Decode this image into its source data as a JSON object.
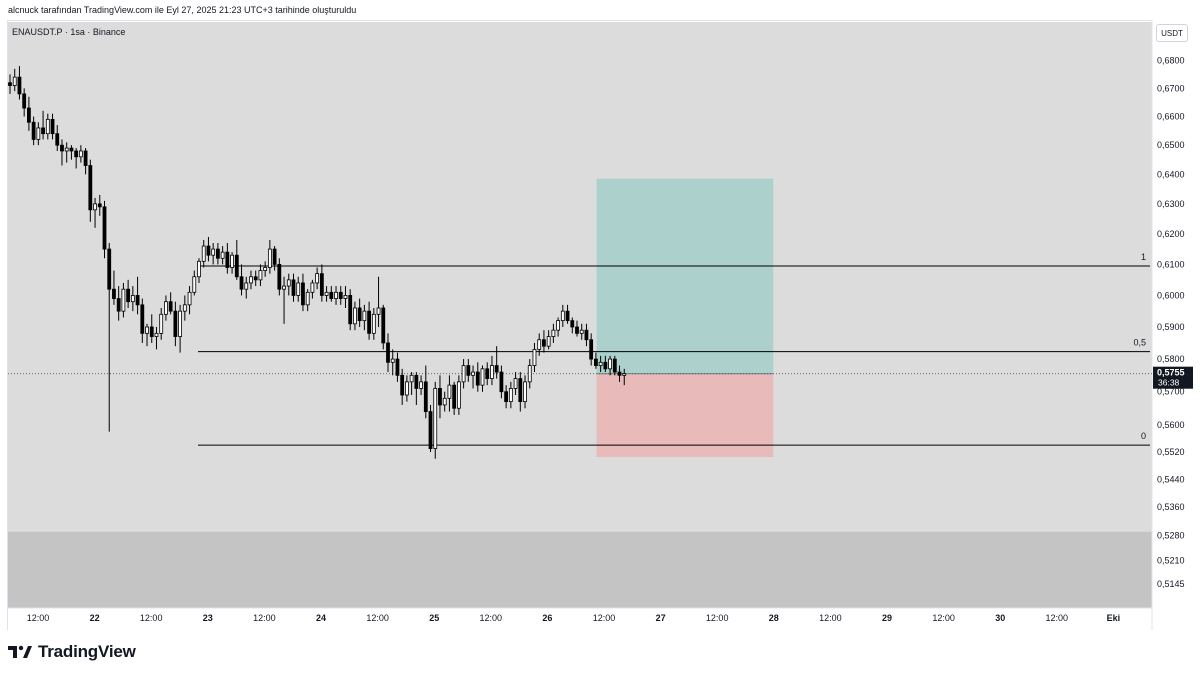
{
  "header": {
    "snapshot_note": "alcnuck tarafından TradingView.com ile Eyl 27, 2025 21:23 UTC+3 tarihinde oluşturuldu"
  },
  "symbol": {
    "line": "ENAUSDT.P · 1sa · Binance",
    "currency": "USDT"
  },
  "brand": {
    "name": "TradingView"
  },
  "colors": {
    "panel": "#dcdcdc",
    "shade": "#c4c4c4",
    "candle": "#000000",
    "hollow": "#ffffff",
    "target_zone": "#a9cfc9",
    "stop_zone": "#e8b7b7",
    "price_tag": "#131722"
  },
  "chart_data": {
    "type": "candlestick",
    "title": "ENAUSDT.P · 1sa · Binance",
    "timeframe": "1sa",
    "y_axis": {
      "scale": "log",
      "side": "right",
      "ticks": [
        "0,6800",
        "0,6700",
        "0,6600",
        "0,6500",
        "0,6400",
        "0,6300",
        "0,6200",
        "0,6100",
        "0,6000",
        "0,5900",
        "0,5800",
        "0,5700",
        "0,5600",
        "0,5520",
        "0,5440",
        "0,5360",
        "0,5280",
        "0,5210",
        "0,5145"
      ]
    },
    "x_axis": {
      "ticks": [
        "12:00",
        "22",
        "12:00",
        "23",
        "12:00",
        "24",
        "12:00",
        "25",
        "12:00",
        "26",
        "12:00",
        "27",
        "12:00",
        "28",
        "12:00",
        "29",
        "12:00",
        "30",
        "12:00",
        "Eki"
      ]
    },
    "grid": false,
    "current_price": {
      "value": "0,5755",
      "countdown": "36:38"
    },
    "fib_levels": [
      {
        "label": "1",
        "price": 0.6095
      },
      {
        "label": "0,5",
        "price": 0.5823
      },
      {
        "label": "0",
        "price": 0.554
      }
    ],
    "position_tool": {
      "side": "long",
      "entry": 0.5755,
      "target": 0.6385,
      "stop": 0.5505,
      "x_start": 125,
      "x_end": 161
    },
    "shaded_band": {
      "from": 0.529,
      "to": 0.51
    },
    "candles": [
      [
        0.672,
        0.675,
        0.668,
        0.671
      ],
      [
        0.671,
        0.677,
        0.669,
        0.674
      ],
      [
        0.674,
        0.678,
        0.666,
        0.668
      ],
      [
        0.668,
        0.67,
        0.66,
        0.663
      ],
      [
        0.663,
        0.667,
        0.655,
        0.658
      ],
      [
        0.658,
        0.66,
        0.65,
        0.652
      ],
      [
        0.652,
        0.658,
        0.65,
        0.656
      ],
      [
        0.656,
        0.662,
        0.652,
        0.654
      ],
      [
        0.654,
        0.661,
        0.652,
        0.659
      ],
      [
        0.659,
        0.661,
        0.652,
        0.654
      ],
      [
        0.654,
        0.657,
        0.648,
        0.65
      ],
      [
        0.65,
        0.652,
        0.643,
        0.648
      ],
      [
        0.648,
        0.651,
        0.644,
        0.649
      ],
      [
        0.649,
        0.65,
        0.645,
        0.648
      ],
      [
        0.648,
        0.649,
        0.642,
        0.646
      ],
      [
        0.646,
        0.65,
        0.644,
        0.648
      ],
      [
        0.648,
        0.649,
        0.64,
        0.643
      ],
      [
        0.643,
        0.645,
        0.624,
        0.628
      ],
      [
        0.628,
        0.632,
        0.622,
        0.63
      ],
      [
        0.63,
        0.633,
        0.626,
        0.629
      ],
      [
        0.629,
        0.631,
        0.612,
        0.615
      ],
      [
        0.615,
        0.617,
        0.558,
        0.602
      ],
      [
        0.602,
        0.608,
        0.597,
        0.599
      ],
      [
        0.599,
        0.603,
        0.592,
        0.595
      ],
      [
        0.595,
        0.604,
        0.593,
        0.602
      ],
      [
        0.602,
        0.605,
        0.596,
        0.598
      ],
      [
        0.598,
        0.603,
        0.595,
        0.6
      ],
      [
        0.6,
        0.606,
        0.594,
        0.597
      ],
      [
        0.597,
        0.599,
        0.585,
        0.588
      ],
      [
        0.588,
        0.591,
        0.584,
        0.59
      ],
      [
        0.59,
        0.594,
        0.585,
        0.587
      ],
      [
        0.587,
        0.59,
        0.583,
        0.588
      ],
      [
        0.588,
        0.596,
        0.586,
        0.594
      ],
      [
        0.594,
        0.6,
        0.592,
        0.598
      ],
      [
        0.598,
        0.601,
        0.594,
        0.595
      ],
      [
        0.595,
        0.598,
        0.584,
        0.587
      ],
      [
        0.587,
        0.597,
        0.582,
        0.595
      ],
      [
        0.595,
        0.6,
        0.592,
        0.597
      ],
      [
        0.597,
        0.603,
        0.594,
        0.601
      ],
      [
        0.601,
        0.608,
        0.6,
        0.606
      ],
      [
        0.606,
        0.612,
        0.604,
        0.611
      ],
      [
        0.611,
        0.618,
        0.609,
        0.616
      ],
      [
        0.616,
        0.619,
        0.611,
        0.613
      ],
      [
        0.613,
        0.617,
        0.61,
        0.615
      ],
      [
        0.615,
        0.617,
        0.61,
        0.612
      ],
      [
        0.612,
        0.616,
        0.61,
        0.614
      ],
      [
        0.614,
        0.617,
        0.607,
        0.609
      ],
      [
        0.609,
        0.614,
        0.607,
        0.613
      ],
      [
        0.613,
        0.618,
        0.605,
        0.606
      ],
      [
        0.606,
        0.61,
        0.6,
        0.602
      ],
      [
        0.602,
        0.606,
        0.599,
        0.604
      ],
      [
        0.604,
        0.608,
        0.602,
        0.606
      ],
      [
        0.606,
        0.608,
        0.603,
        0.605
      ],
      [
        0.605,
        0.61,
        0.603,
        0.608
      ],
      [
        0.608,
        0.611,
        0.606,
        0.609
      ],
      [
        0.609,
        0.618,
        0.607,
        0.615
      ],
      [
        0.615,
        0.616,
        0.608,
        0.61
      ],
      [
        0.61,
        0.612,
        0.6,
        0.602
      ],
      [
        0.602,
        0.606,
        0.591,
        0.603
      ],
      [
        0.603,
        0.607,
        0.6,
        0.605
      ],
      [
        0.605,
        0.607,
        0.598,
        0.6
      ],
      [
        0.6,
        0.606,
        0.598,
        0.604
      ],
      [
        0.604,
        0.607,
        0.595,
        0.597
      ],
      [
        0.597,
        0.602,
        0.595,
        0.601
      ],
      [
        0.601,
        0.605,
        0.599,
        0.604
      ],
      [
        0.604,
        0.609,
        0.602,
        0.607
      ],
      [
        0.607,
        0.61,
        0.598,
        0.6
      ],
      [
        0.6,
        0.603,
        0.598,
        0.601
      ],
      [
        0.601,
        0.603,
        0.598,
        0.599
      ],
      [
        0.599,
        0.603,
        0.597,
        0.601
      ],
      [
        0.601,
        0.603,
        0.597,
        0.599
      ],
      [
        0.599,
        0.603,
        0.596,
        0.6
      ],
      [
        0.6,
        0.602,
        0.589,
        0.591
      ],
      [
        0.591,
        0.598,
        0.589,
        0.596
      ],
      [
        0.596,
        0.599,
        0.59,
        0.592
      ],
      [
        0.592,
        0.597,
        0.589,
        0.595
      ],
      [
        0.595,
        0.598,
        0.586,
        0.588
      ],
      [
        0.588,
        0.596,
        0.586,
        0.594
      ],
      [
        0.594,
        0.606,
        0.59,
        0.596
      ],
      [
        0.596,
        0.597,
        0.583,
        0.585
      ],
      [
        0.585,
        0.588,
        0.576,
        0.579
      ],
      [
        0.579,
        0.583,
        0.575,
        0.58
      ],
      [
        0.58,
        0.582,
        0.573,
        0.575
      ],
      [
        0.575,
        0.577,
        0.566,
        0.569
      ],
      [
        0.569,
        0.575,
        0.567,
        0.573
      ],
      [
        0.573,
        0.576,
        0.569,
        0.575
      ],
      [
        0.575,
        0.576,
        0.566,
        0.571
      ],
      [
        0.571,
        0.575,
        0.569,
        0.573
      ],
      [
        0.573,
        0.578,
        0.562,
        0.564
      ],
      [
        0.564,
        0.566,
        0.552,
        0.553
      ],
      [
        0.553,
        0.573,
        0.55,
        0.571
      ],
      [
        0.571,
        0.575,
        0.562,
        0.566
      ],
      [
        0.566,
        0.57,
        0.564,
        0.568
      ],
      [
        0.568,
        0.575,
        0.564,
        0.572
      ],
      [
        0.572,
        0.573,
        0.563,
        0.565
      ],
      [
        0.565,
        0.575,
        0.563,
        0.573
      ],
      [
        0.573,
        0.58,
        0.571,
        0.578
      ],
      [
        0.578,
        0.58,
        0.573,
        0.575
      ],
      [
        0.575,
        0.578,
        0.571,
        0.576
      ],
      [
        0.576,
        0.579,
        0.57,
        0.572
      ],
      [
        0.572,
        0.578,
        0.57,
        0.577
      ],
      [
        0.577,
        0.579,
        0.572,
        0.574
      ],
      [
        0.574,
        0.581,
        0.572,
        0.578
      ],
      [
        0.578,
        0.584,
        0.574,
        0.576
      ],
      [
        0.576,
        0.578,
        0.568,
        0.57
      ],
      [
        0.57,
        0.572,
        0.565,
        0.567
      ],
      [
        0.567,
        0.573,
        0.565,
        0.571
      ],
      [
        0.571,
        0.576,
        0.569,
        0.574
      ],
      [
        0.574,
        0.576,
        0.564,
        0.567
      ],
      [
        0.567,
        0.575,
        0.565,
        0.573
      ],
      [
        0.573,
        0.58,
        0.571,
        0.578
      ],
      [
        0.578,
        0.585,
        0.576,
        0.583
      ],
      [
        0.583,
        0.588,
        0.581,
        0.586
      ],
      [
        0.586,
        0.589,
        0.582,
        0.584
      ],
      [
        0.584,
        0.589,
        0.583,
        0.587
      ],
      [
        0.587,
        0.591,
        0.585,
        0.589
      ],
      [
        0.589,
        0.593,
        0.587,
        0.592
      ],
      [
        0.592,
        0.597,
        0.59,
        0.595
      ],
      [
        0.595,
        0.597,
        0.591,
        0.592
      ],
      [
        0.592,
        0.593,
        0.588,
        0.59
      ],
      [
        0.59,
        0.592,
        0.587,
        0.588
      ],
      [
        0.588,
        0.591,
        0.586,
        0.589
      ],
      [
        0.589,
        0.591,
        0.584,
        0.586
      ],
      [
        0.586,
        0.588,
        0.578,
        0.58
      ],
      [
        0.58,
        0.582,
        0.577,
        0.578
      ],
      [
        0.578,
        0.581,
        0.576,
        0.579
      ],
      [
        0.579,
        0.581,
        0.576,
        0.577
      ],
      [
        0.577,
        0.581,
        0.575,
        0.58
      ],
      [
        0.58,
        0.581,
        0.575,
        0.576
      ],
      [
        0.576,
        0.578,
        0.573,
        0.575
      ],
      [
        0.575,
        0.577,
        0.572,
        0.5755
      ]
    ]
  }
}
